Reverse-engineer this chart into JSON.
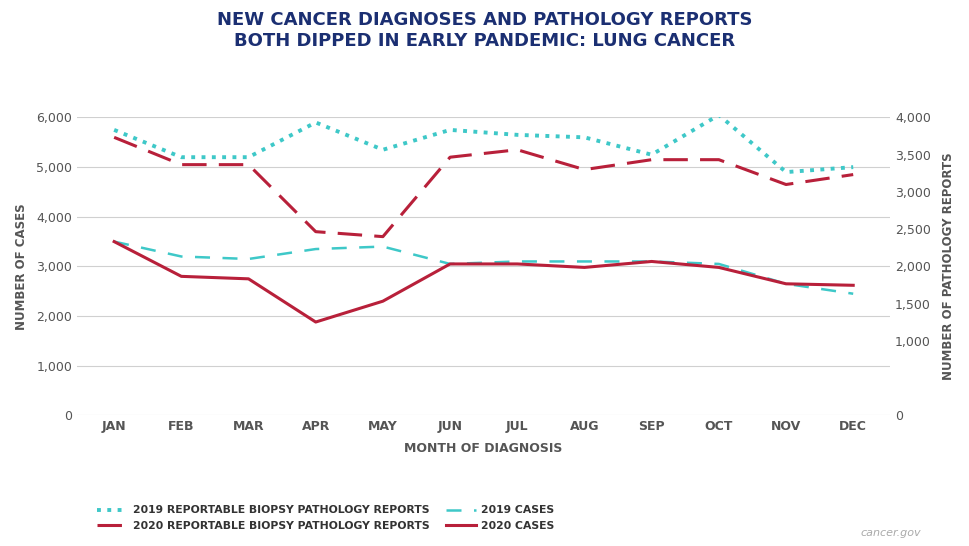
{
  "title": "NEW CANCER DIAGNOSES AND PATHOLOGY REPORTS\nBOTH DIPPED IN EARLY PANDEMIC: LUNG CANCER",
  "months": [
    "JAN",
    "FEB",
    "MAR",
    "APR",
    "MAY",
    "JUN",
    "JUL",
    "AUG",
    "SEP",
    "OCT",
    "NOV",
    "DEC"
  ],
  "cases_2019": [
    3500,
    3200,
    3150,
    3350,
    3400,
    3050,
    3100,
    3100,
    3100,
    3050,
    2650,
    2450
  ],
  "cases_2020": [
    3500,
    2800,
    2750,
    1880,
    2300,
    3050,
    3050,
    2980,
    3100,
    2980,
    2650,
    2620
  ],
  "path_2019": [
    5750,
    5200,
    5200,
    5900,
    5350,
    5750,
    5650,
    5600,
    5250,
    6050,
    4900,
    5000
  ],
  "path_2020": [
    5600,
    5050,
    5050,
    3700,
    3600,
    5200,
    5350,
    4950,
    5150,
    5150,
    4650,
    4850
  ],
  "left_ylim": [
    0,
    6000
  ],
  "right_ylim": [
    0,
    4000
  ],
  "left_yticks": [
    0,
    1000,
    2000,
    3000,
    4000,
    5000,
    6000
  ],
  "right_yticks": [
    0,
    1000,
    1500,
    2000,
    2500,
    3000,
    3500,
    4000
  ],
  "xlabel": "MONTH OF DIAGNOSIS",
  "ylabel_left": "NUMBER OF CASES",
  "ylabel_right": "NUMBER OF PATHOLOGY REPORTS",
  "color_cyan": "#3EC8C8",
  "color_crimson": "#B8203A",
  "bg_color": "#FFFFFF",
  "grid_color": "#D0D0D0",
  "title_color": "#1B2F72",
  "tick_color": "#555555",
  "watermark": "cancer.gov",
  "scale_factor": 1.5,
  "legend_items": [
    {
      "label": "2019 REPORTABLE BIOPSY PATHOLOGY REPORTS",
      "color": "#3EC8C8",
      "linestyle": "dotted",
      "lw": 2.8
    },
    {
      "label": "2020 REPORTABLE BIOPSY PATHOLOGY REPORTS",
      "color": "#B8203A",
      "linestyle": "dashed",
      "lw": 2.2
    },
    {
      "label": "2019 CASES",
      "color": "#3EC8C8",
      "linestyle": "dashed",
      "lw": 1.8
    },
    {
      "label": "2020 CASES",
      "color": "#B8203A",
      "linestyle": "solid",
      "lw": 2.2
    }
  ]
}
